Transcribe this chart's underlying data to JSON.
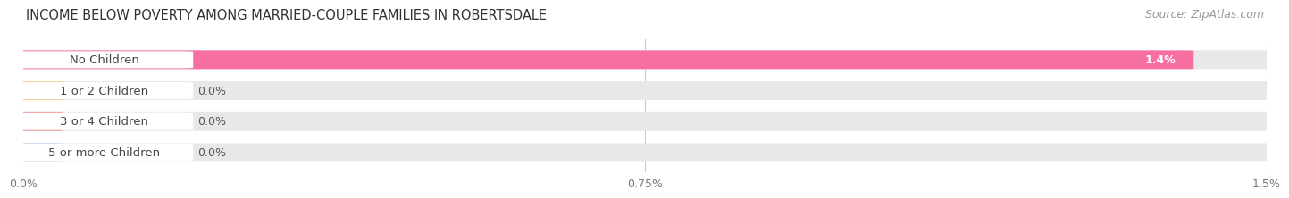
{
  "title": "INCOME BELOW POVERTY AMONG MARRIED-COUPLE FAMILIES IN ROBERTSDALE",
  "source": "Source: ZipAtlas.com",
  "categories": [
    "No Children",
    "1 or 2 Children",
    "3 or 4 Children",
    "5 or more Children"
  ],
  "values": [
    1.4,
    0.0,
    0.0,
    0.0
  ],
  "bar_colors": [
    "#f76fa0",
    "#f5c98a",
    "#f08080",
    "#a8c8f0"
  ],
  "track_color": "#e8e8e8",
  "label_bg_color": "#ffffff",
  "xlim": [
    0,
    1.5
  ],
  "xticks": [
    0.0,
    0.75,
    1.5
  ],
  "xticklabels": [
    "0.0%",
    "0.75%",
    "1.5%"
  ],
  "bar_height": 0.58,
  "background_color": "#ffffff",
  "title_fontsize": 10.5,
  "source_fontsize": 9,
  "label_fontsize": 9.5,
  "value_fontsize": 9
}
